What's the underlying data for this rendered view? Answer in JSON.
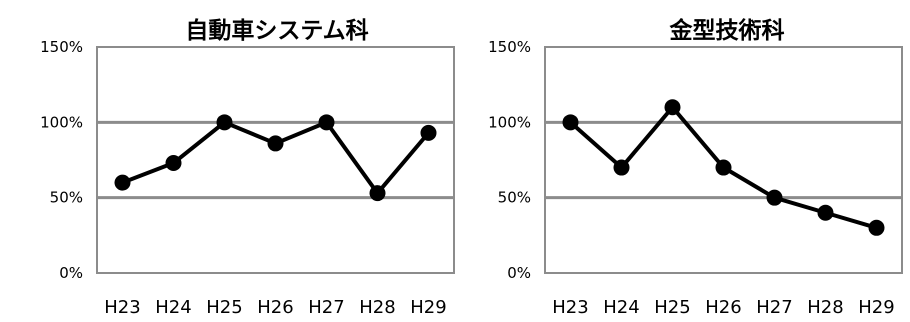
{
  "chart_data": [
    {
      "type": "line",
      "title": "自動車システム科",
      "categories": [
        "H23",
        "H24",
        "H25",
        "H26",
        "H27",
        "H28",
        "H29"
      ],
      "values": [
        60,
        73,
        100,
        86,
        100,
        53,
        93
      ],
      "ylim": [
        0,
        150
      ],
      "yticks": [
        "0%",
        "50%",
        "100%",
        "150%"
      ],
      "ytick_values": [
        0,
        50,
        100,
        150
      ],
      "grid": true,
      "line_color": "#000000",
      "grid_color": "#8c8c8c"
    },
    {
      "type": "line",
      "title": "金型技術科",
      "categories": [
        "H23",
        "H24",
        "H25",
        "H26",
        "H27",
        "H28",
        "H29"
      ],
      "values": [
        100,
        70,
        110,
        70,
        50,
        40,
        30
      ],
      "ylim": [
        0,
        150
      ],
      "yticks": [
        "0%",
        "50%",
        "100%",
        "150%"
      ],
      "ytick_values": [
        0,
        50,
        100,
        150
      ],
      "grid": true,
      "line_color": "#000000",
      "grid_color": "#8c8c8c"
    }
  ]
}
